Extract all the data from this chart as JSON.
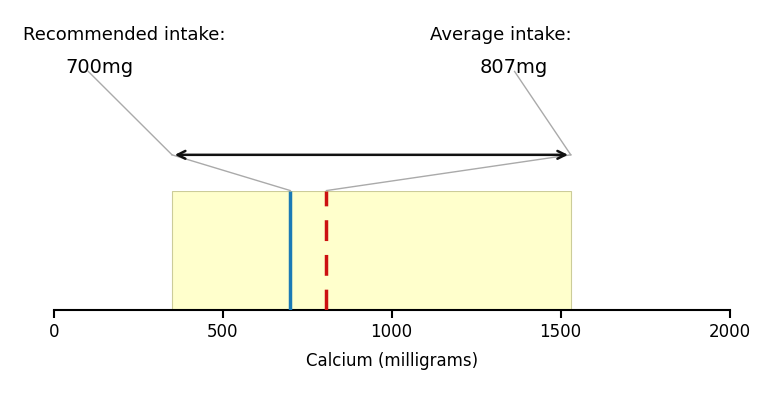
{
  "xlim": [
    0,
    2000
  ],
  "xticks": [
    0,
    500,
    1000,
    1500,
    2000
  ],
  "xlabel": "Calcium (milligrams)",
  "xlabel_fontsize": 12,
  "xtick_fontsize": 12,
  "recommended_value": 700,
  "average_value": 807,
  "range_low": 350,
  "range_high": 1530,
  "rect_color": "#ffffcc",
  "rect_edge_color": "#cccc99",
  "recommended_line_color": "#1a7ab5",
  "average_line_color": "#cc1111",
  "arrow_color": "#111111",
  "annotation_line_color": "#aaaaaa",
  "recommended_label": "Recommended intake:",
  "recommended_value_label": "700mg",
  "average_label": "Average intake:",
  "average_value_label": "807mg",
  "label_fontsize": 13,
  "value_fontsize": 14,
  "background_color": "#ffffff"
}
